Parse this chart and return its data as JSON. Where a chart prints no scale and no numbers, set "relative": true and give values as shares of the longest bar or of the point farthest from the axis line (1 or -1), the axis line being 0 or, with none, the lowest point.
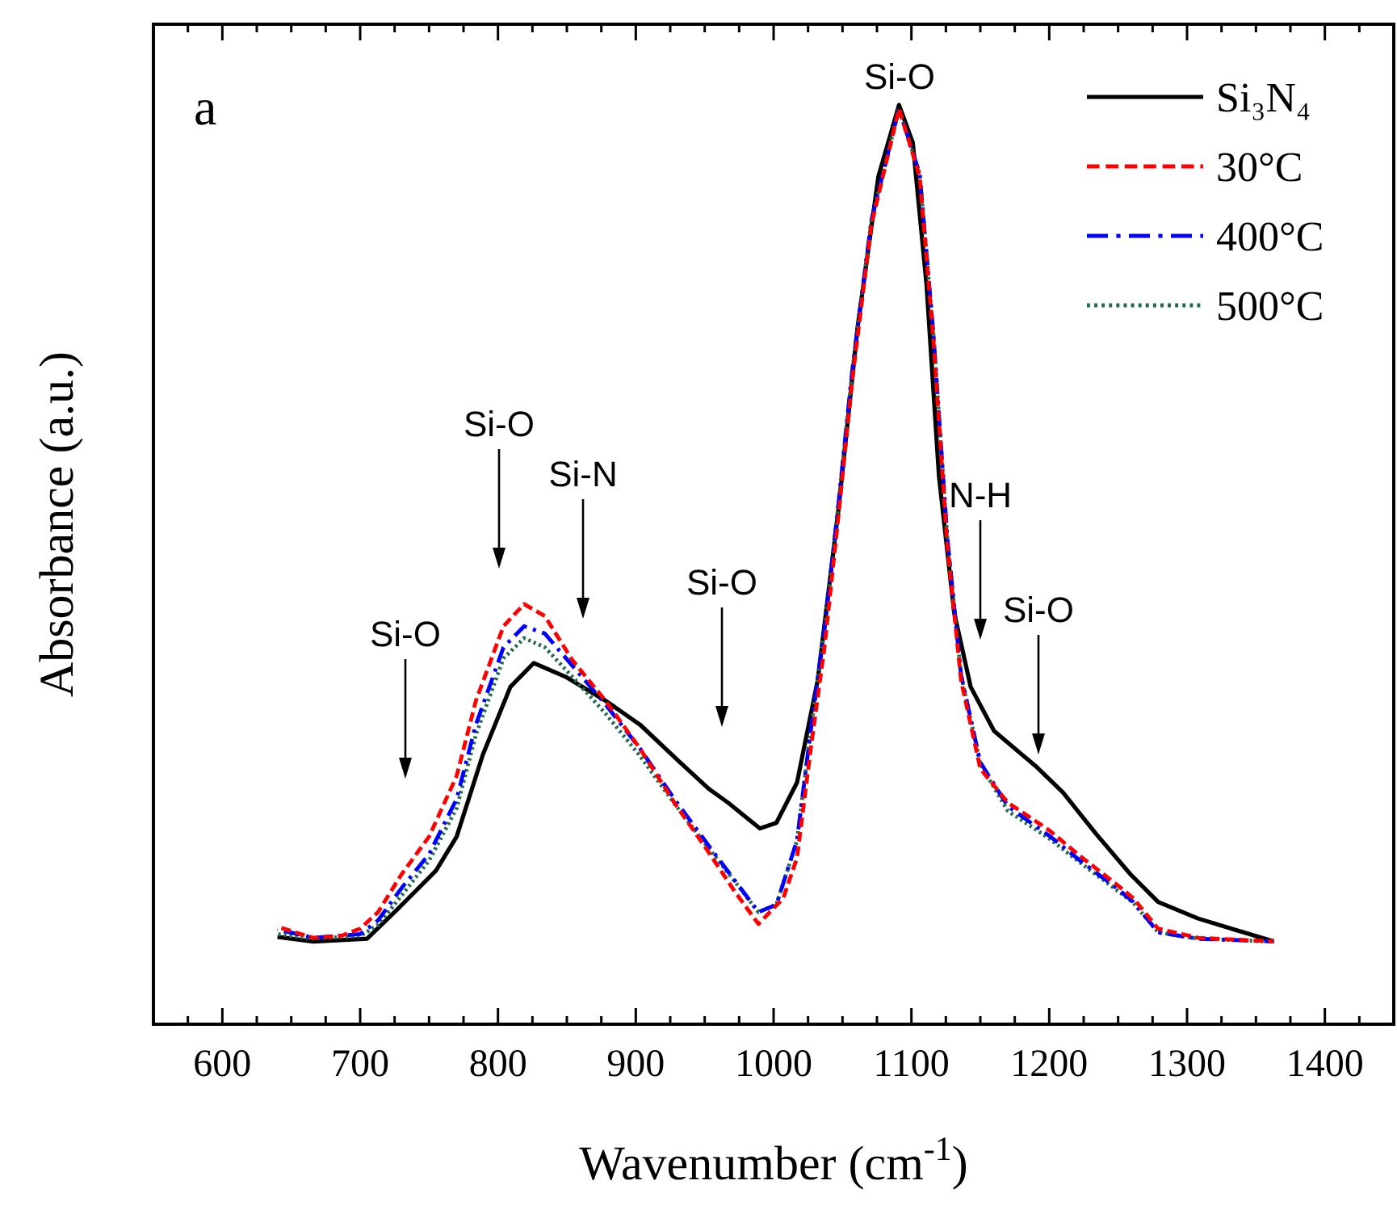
{
  "chart_data": {
    "type": "line",
    "relative": true,
    "xlabel": "Wavenumber (cm$^{-1}$)",
    "ylabel": "Absorbance (a.u.)",
    "xlim": [
      550,
      1450
    ],
    "xticks": [
      {
        "value": 550,
        "label": null
      },
      {
        "value": 575,
        "label": null
      },
      600,
      {
        "value": 625,
        "label": null
      },
      {
        "value": 650,
        "label": null
      },
      {
        "value": 675,
        "label": null
      },
      700,
      {
        "value": 725,
        "label": null
      },
      {
        "value": 750,
        "label": null
      },
      {
        "value": 775,
        "label": null
      },
      800,
      {
        "value": 825,
        "label": null
      },
      {
        "value": 850,
        "label": null
      },
      {
        "value": 875,
        "label": null
      },
      900,
      {
        "value": 925,
        "label": null
      },
      {
        "value": 950,
        "label": null
      },
      {
        "value": 975,
        "label": null
      },
      1000,
      {
        "value": 1025,
        "label": null
      },
      {
        "value": 1050,
        "label": null
      },
      {
        "value": 1075,
        "label": null
      },
      1100,
      {
        "value": 1125,
        "label": null
      },
      {
        "value": 1150,
        "label": null
      },
      {
        "value": 1175,
        "label": null
      },
      1200,
      {
        "value": 1225,
        "label": null
      },
      {
        "value": 1250,
        "label": null
      },
      {
        "value": 1275,
        "label": null
      },
      1300,
      {
        "value": 1325,
        "label": null
      },
      {
        "value": 1350,
        "label": null
      },
      {
        "value": 1375,
        "label": null
      },
      1400,
      {
        "value": 1425,
        "label": null
      },
      {
        "value": 1450,
        "label": null
      }
    ],
    "legend": "top right",
    "series": [
      {
        "name": "Si₃N₄",
        "color": "#000000",
        "line_style": "solid",
        "x": [
          640,
          666,
          705,
          725,
          755,
          770,
          789,
          809,
          826,
          849,
          878,
          903,
          932,
          953,
          967,
          990,
          1002,
          1017,
          1032,
          1047,
          1061,
          1076,
          1091,
          1101,
          1111,
          1120,
          1131,
          1143,
          1160,
          1190,
          1210,
          1234,
          1259,
          1279,
          1308,
          1343,
          1363
        ],
        "values": [
          0.095,
          0.09,
          0.093,
          0.122,
          0.167,
          0.204,
          0.293,
          0.367,
          0.393,
          0.378,
          0.352,
          0.326,
          0.285,
          0.256,
          0.241,
          0.213,
          0.219,
          0.263,
          0.374,
          0.559,
          0.759,
          0.922,
          1.0,
          0.959,
          0.804,
          0.596,
          0.448,
          0.367,
          0.319,
          0.281,
          0.252,
          0.207,
          0.163,
          0.133,
          0.115,
          0.099,
          0.09
        ]
      },
      {
        "name": "30°C",
        "color": "#ff0000",
        "line_style": "dashed",
        "x": [
          640,
          666,
          686,
          700,
          713,
          730,
          750,
          770,
          784,
          804,
          819,
          834,
          854,
          878,
          903,
          928,
          952,
          972,
          989,
          1007,
          1017,
          1027,
          1037,
          1047,
          1057,
          1071,
          1091,
          1106,
          1116,
          1126,
          1136,
          1150,
          1170,
          1200,
          1224,
          1249,
          1261,
          1279,
          1308,
          1363
        ],
        "values": [
          0.106,
          0.094,
          0.096,
          0.104,
          0.122,
          0.163,
          0.204,
          0.27,
          0.352,
          0.433,
          0.457,
          0.444,
          0.396,
          0.352,
          0.3,
          0.241,
          0.189,
          0.144,
          0.109,
          0.137,
          0.181,
          0.3,
          0.411,
          0.552,
          0.7,
          0.87,
          0.996,
          0.922,
          0.744,
          0.522,
          0.374,
          0.278,
          0.241,
          0.211,
          0.181,
          0.152,
          0.137,
          0.104,
          0.094,
          0.09
        ]
      },
      {
        "name": "400°C",
        "color": "#0000ff",
        "line_style": "dashdot",
        "x": [
          640,
          666,
          700,
          713,
          730,
          750,
          770,
          784,
          804,
          819,
          834,
          854,
          878,
          903,
          928,
          952,
          972,
          989,
          1002,
          1017,
          1027,
          1037,
          1047,
          1057,
          1071,
          1091,
          1106,
          1116,
          1126,
          1136,
          1150,
          1170,
          1200,
          1224,
          1249,
          1261,
          1279,
          1308,
          1363
        ],
        "values": [
          0.103,
          0.094,
          0.098,
          0.113,
          0.148,
          0.185,
          0.245,
          0.326,
          0.41,
          0.433,
          0.425,
          0.39,
          0.348,
          0.3,
          0.245,
          0.196,
          0.156,
          0.122,
          0.13,
          0.2,
          0.32,
          0.43,
          0.565,
          0.71,
          0.875,
          0.996,
          0.925,
          0.75,
          0.53,
          0.38,
          0.285,
          0.237,
          0.205,
          0.176,
          0.148,
          0.133,
          0.1,
          0.093,
          0.09
        ]
      },
      {
        "name": "500°C",
        "color": "#1f6b4a",
        "line_style": "dotted",
        "x": [
          640,
          666,
          700,
          713,
          730,
          750,
          770,
          784,
          804,
          819,
          834,
          854,
          878,
          903,
          928,
          952,
          972,
          989,
          1002,
          1017,
          1027,
          1037,
          1047,
          1057,
          1071,
          1091,
          1106,
          1116,
          1126,
          1136,
          1150,
          1170,
          1200,
          1224,
          1249,
          1261,
          1279,
          1308,
          1363
        ],
        "values": [
          0.098,
          0.093,
          0.096,
          0.108,
          0.14,
          0.178,
          0.235,
          0.315,
          0.398,
          0.42,
          0.41,
          0.378,
          0.338,
          0.292,
          0.24,
          0.193,
          0.155,
          0.122,
          0.13,
          0.2,
          0.32,
          0.43,
          0.565,
          0.71,
          0.875,
          0.996,
          0.925,
          0.75,
          0.53,
          0.38,
          0.283,
          0.232,
          0.202,
          0.174,
          0.146,
          0.132,
          0.1,
          0.093,
          0.09
        ]
      }
    ],
    "annotations": [
      "a",
      "Si-O",
      "Si-O",
      "Si-N",
      "Si-O",
      "Si-O",
      "N-H",
      "Si-O"
    ]
  }
}
